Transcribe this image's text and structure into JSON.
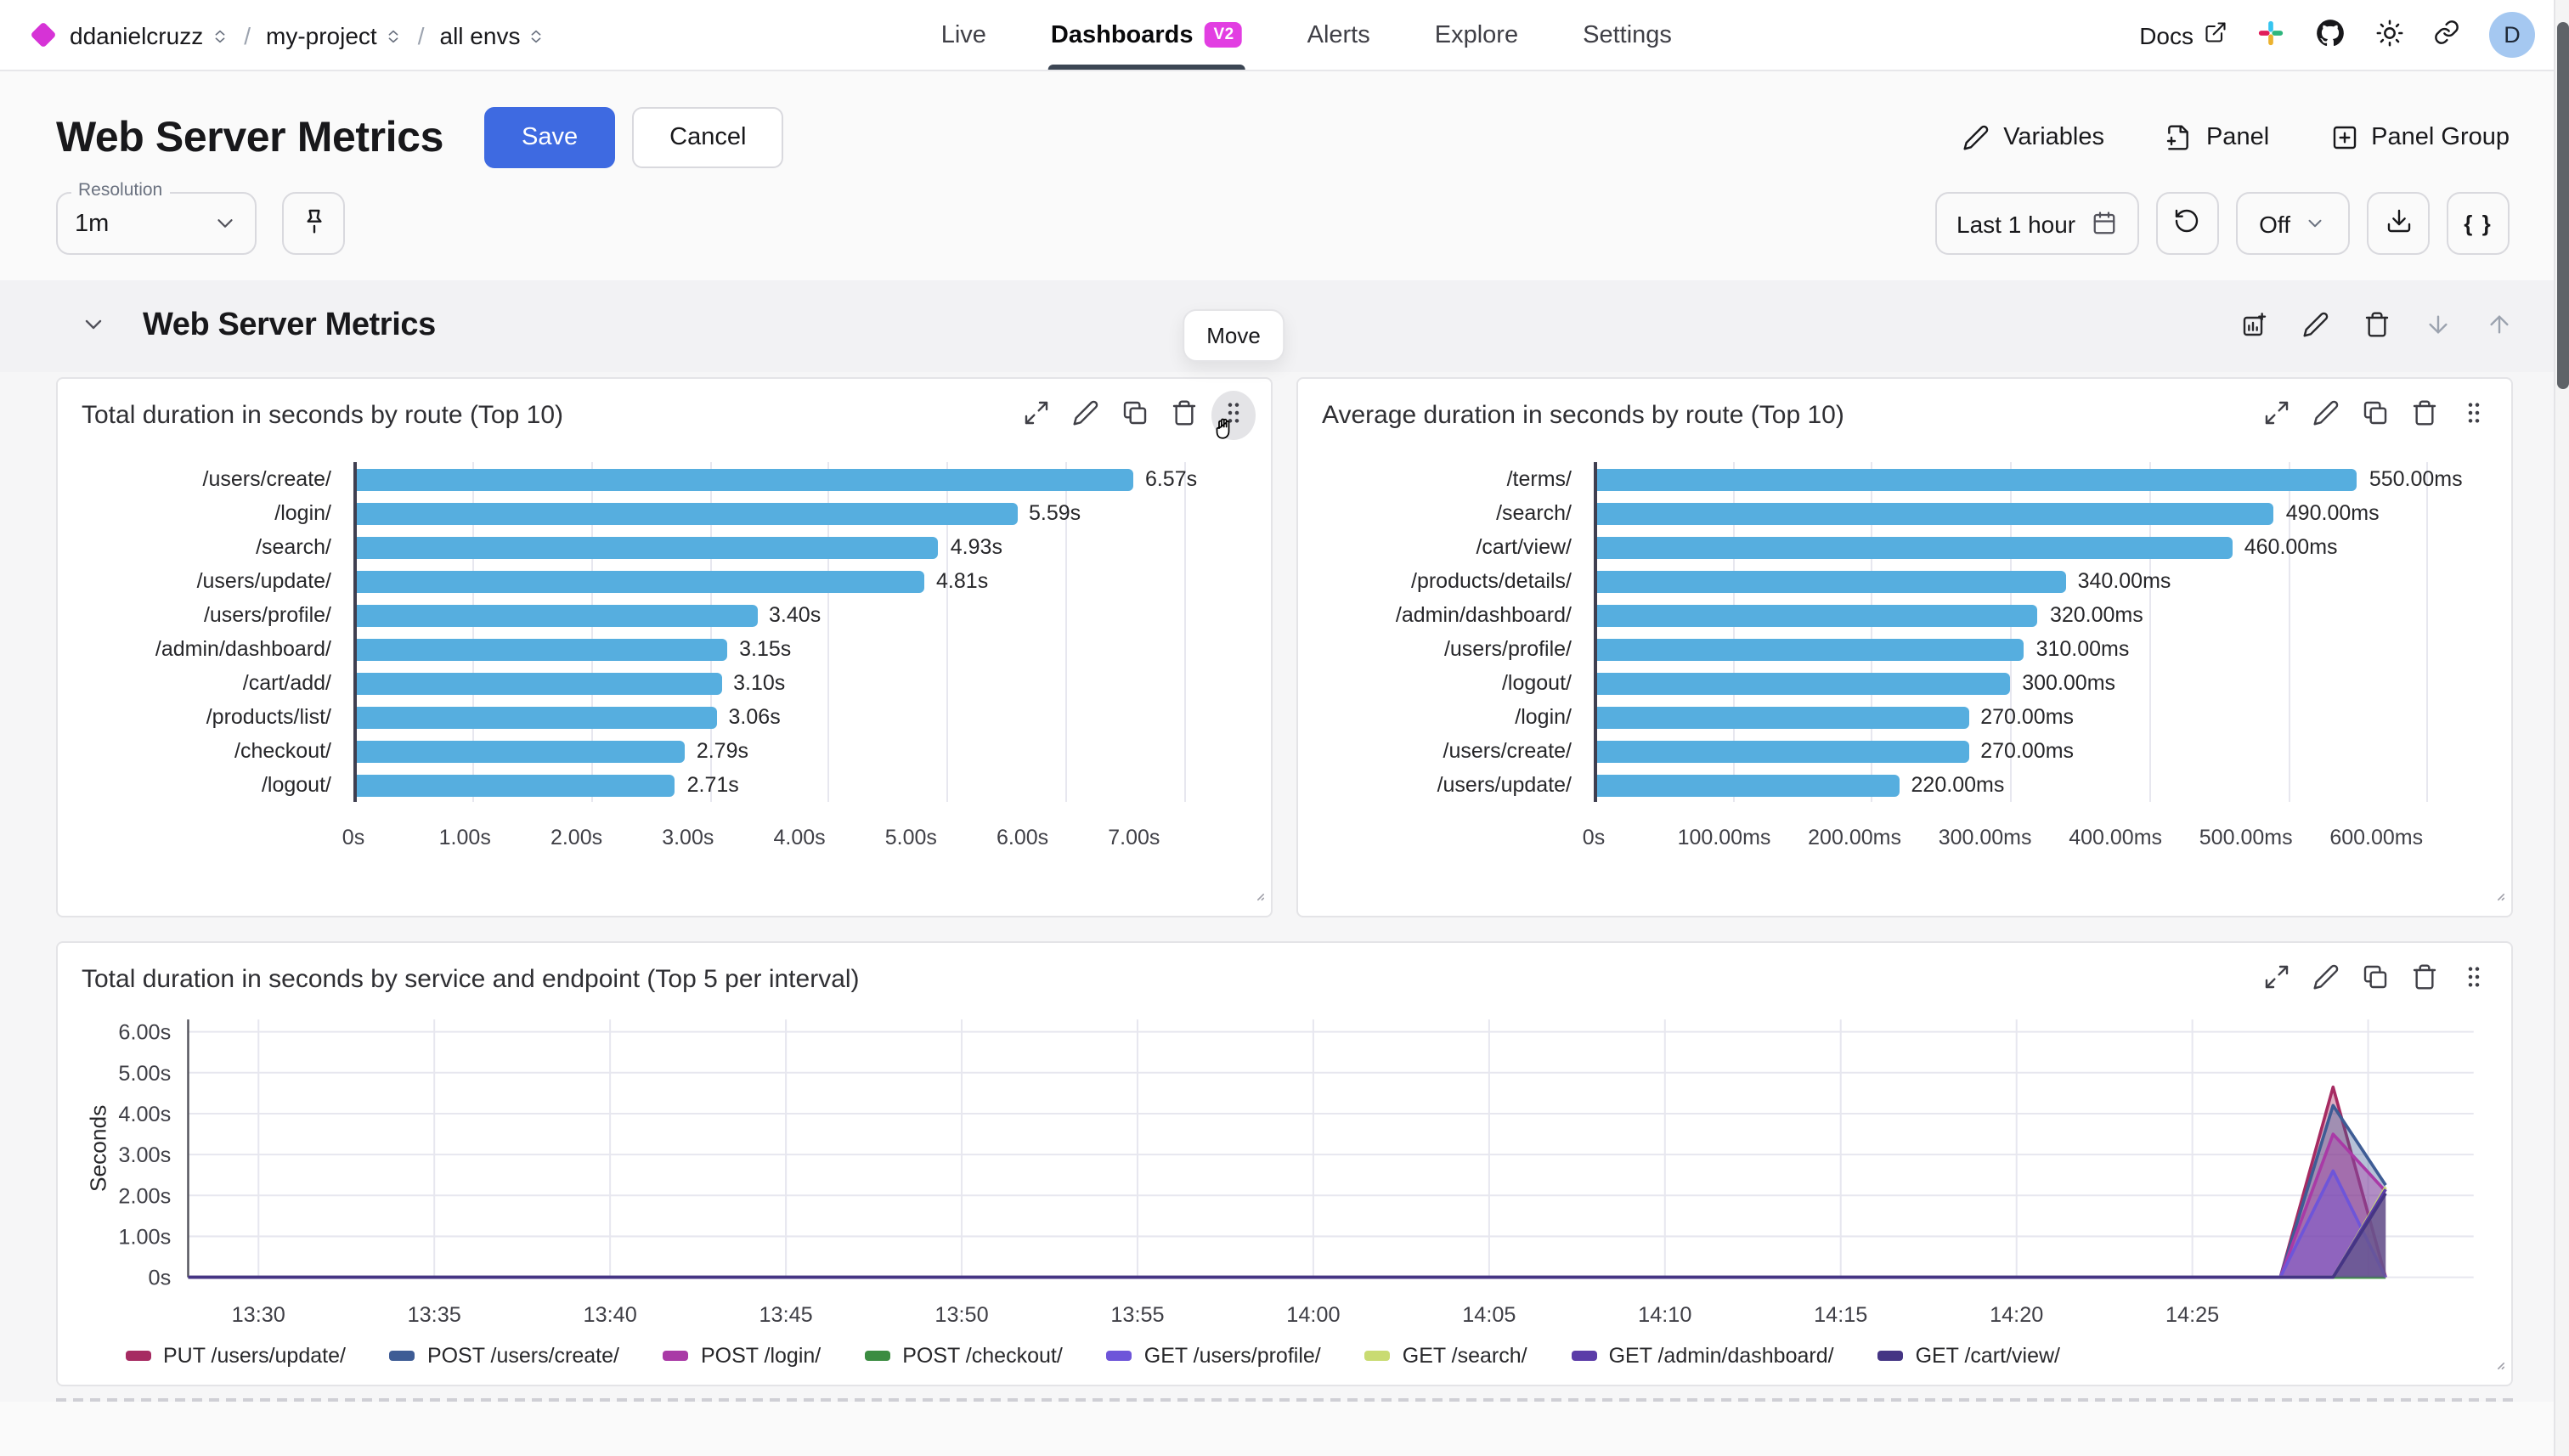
{
  "colors": {
    "brand_magenta": "#D633D6",
    "badge_magenta": "#E23EE2",
    "save_blue": "#3E6AE1",
    "bar_blue": "#56AEDF",
    "tab_underline": "#3C4654",
    "avatar_bg": "#A5C8F1"
  },
  "nav": {
    "breadcrumb": [
      {
        "label": "ddanielcruzz"
      },
      {
        "label": "my-project"
      },
      {
        "label": "all envs"
      }
    ],
    "tabs": [
      {
        "label": "Live",
        "active": false
      },
      {
        "label": "Dashboards",
        "active": true,
        "badge": "V2"
      },
      {
        "label": "Alerts",
        "active": false
      },
      {
        "label": "Explore",
        "active": false
      },
      {
        "label": "Settings",
        "active": false
      }
    ],
    "docs_label": "Docs",
    "right_icons": [
      "external-link-icon",
      "slack-icon",
      "github-icon",
      "sun-icon",
      "link-icon"
    ],
    "avatar_initial": "D"
  },
  "header": {
    "title": "Web Server Metrics",
    "save_label": "Save",
    "cancel_label": "Cancel",
    "actions": [
      {
        "label": "Variables",
        "icon": "pencil",
        "name": "variables-button"
      },
      {
        "label": "Panel",
        "icon": "file-plus",
        "name": "add-panel-button"
      },
      {
        "label": "Panel Group",
        "icon": "square-plus",
        "name": "add-panel-group-button"
      }
    ]
  },
  "toolbar": {
    "resolution_label": "Resolution",
    "resolution_value": "1m",
    "time_range_label": "Last 1 hour",
    "live_mode_label": "Off",
    "braces_label": "{ }"
  },
  "section": {
    "title": "Web Server Metrics",
    "move_tooltip": "Move",
    "icons": [
      {
        "icon": "add-panel",
        "name": "group-add-panel-button",
        "muted": false
      },
      {
        "icon": "pencil",
        "name": "group-edit-button",
        "muted": false
      },
      {
        "icon": "trash",
        "name": "group-delete-button",
        "muted": false
      },
      {
        "icon": "arrow-down",
        "name": "group-move-down-button",
        "muted": true
      },
      {
        "icon": "arrow-up",
        "name": "group-move-up-button",
        "muted": true
      }
    ]
  },
  "panel_action_icons": [
    "expand",
    "pencil",
    "copy",
    "trash",
    "drag"
  ],
  "chart_data": [
    {
      "type": "bar",
      "orientation": "horizontal",
      "title": "Total duration in seconds by route (Top 10)",
      "categories": [
        "/users/create/",
        "/login/",
        "/search/",
        "/users/update/",
        "/users/profile/",
        "/admin/dashboard/",
        "/cart/add/",
        "/products/list/",
        "/checkout/",
        "/logout/"
      ],
      "values": [
        6.57,
        5.59,
        4.93,
        4.81,
        3.4,
        3.15,
        3.1,
        3.06,
        2.79,
        2.71
      ],
      "value_labels": [
        "6.57s",
        "5.59s",
        "4.93s",
        "4.81s",
        "3.40s",
        "3.15s",
        "3.10s",
        "3.06s",
        "2.79s",
        "2.71s"
      ],
      "x_ticks": [
        {
          "value": 0,
          "label": "0s"
        },
        {
          "value": 1,
          "label": "1.00s"
        },
        {
          "value": 2,
          "label": "2.00s"
        },
        {
          "value": 3,
          "label": "3.00s"
        },
        {
          "value": 4,
          "label": "4.00s"
        },
        {
          "value": 5,
          "label": "5.00s"
        },
        {
          "value": 6,
          "label": "6.00s"
        },
        {
          "value": 7,
          "label": "7.00s"
        }
      ],
      "x_max": 7.1,
      "bar_color": "#56AEDF",
      "grid": true
    },
    {
      "type": "bar",
      "orientation": "horizontal",
      "title": "Average duration in seconds by route (Top 10)",
      "categories": [
        "/terms/",
        "/search/",
        "/cart/view/",
        "/products/details/",
        "/admin/dashboard/",
        "/users/profile/",
        "/logout/",
        "/login/",
        "/users/create/",
        "/users/update/"
      ],
      "values": [
        550,
        490,
        460,
        340,
        320,
        310,
        300,
        270,
        270,
        220
      ],
      "value_labels": [
        "550.00ms",
        "490.00ms",
        "460.00ms",
        "340.00ms",
        "320.00ms",
        "310.00ms",
        "300.00ms",
        "270.00ms",
        "270.00ms",
        "220.00ms"
      ],
      "x_ticks": [
        {
          "value": 0,
          "label": "0s"
        },
        {
          "value": 100,
          "label": "100.00ms"
        },
        {
          "value": 200,
          "label": "200.00ms"
        },
        {
          "value": 300,
          "label": "300.00ms"
        },
        {
          "value": 400,
          "label": "400.00ms"
        },
        {
          "value": 500,
          "label": "500.00ms"
        },
        {
          "value": 600,
          "label": "600.00ms"
        }
      ],
      "x_max": 607,
      "bar_color": "#56AEDF",
      "grid": true
    },
    {
      "type": "area",
      "title": "Total duration in seconds by service and endpoint (Top 5 per interval)",
      "ylabel": "Seconds",
      "y_ticks": [
        {
          "value": 0,
          "label": "0s"
        },
        {
          "value": 1,
          "label": "1.00s"
        },
        {
          "value": 2,
          "label": "2.00s"
        },
        {
          "value": 3,
          "label": "3.00s"
        },
        {
          "value": 4,
          "label": "4.00s"
        },
        {
          "value": 5,
          "label": "5.00s"
        },
        {
          "value": 6,
          "label": "6.00s"
        }
      ],
      "y_max": 6.3,
      "x_domain_minutes": [
        0,
        65
      ],
      "x_ticks": [
        {
          "minute": 2,
          "label": "13:30"
        },
        {
          "minute": 7,
          "label": "13:35"
        },
        {
          "minute": 12,
          "label": "13:40"
        },
        {
          "minute": 17,
          "label": "13:45"
        },
        {
          "minute": 22,
          "label": "13:50"
        },
        {
          "minute": 27,
          "label": "13:55"
        },
        {
          "minute": 32,
          "label": "14:00"
        },
        {
          "minute": 37,
          "label": "14:05"
        },
        {
          "minute": 42,
          "label": "14:10"
        },
        {
          "minute": 47,
          "label": "14:15"
        },
        {
          "minute": 52,
          "label": "14:20"
        },
        {
          "minute": 57,
          "label": "14:25"
        }
      ],
      "extra_gridline_minutes": [
        62
      ],
      "grid": true,
      "legend_position": "bottom",
      "series": [
        {
          "name": "PUT /users/update/",
          "color": "#A62B62",
          "points": [
            [
              0,
              0
            ],
            [
              59.5,
              0
            ],
            [
              61,
              4.65
            ],
            [
              62.5,
              0
            ]
          ]
        },
        {
          "name": "POST /users/create/",
          "color": "#3E5C95",
          "points": [
            [
              0,
              0
            ],
            [
              59.5,
              0
            ],
            [
              61,
              4.2
            ],
            [
              62.5,
              2.25
            ]
          ]
        },
        {
          "name": "POST /login/",
          "color": "#A93AA6",
          "points": [
            [
              0,
              0
            ],
            [
              59.5,
              0
            ],
            [
              61,
              3.5
            ],
            [
              62.5,
              2.1
            ]
          ]
        },
        {
          "name": "POST /checkout/",
          "color": "#3B8C41",
          "points": [
            [
              0,
              0
            ],
            [
              62.5,
              0
            ]
          ]
        },
        {
          "name": "GET /users/profile/",
          "color": "#6E55D9",
          "points": [
            [
              0,
              0
            ],
            [
              59.5,
              0
            ],
            [
              61,
              2.6
            ],
            [
              62.5,
              0
            ]
          ]
        },
        {
          "name": "GET /search/",
          "color": "#C9DB72",
          "points": [
            [
              0,
              0
            ],
            [
              61,
              0
            ],
            [
              62.5,
              2.2
            ]
          ]
        },
        {
          "name": "GET /admin/dashboard/",
          "color": "#5B3CA8",
          "points": [
            [
              0,
              0
            ],
            [
              61,
              0
            ],
            [
              62.5,
              2.15
            ]
          ]
        },
        {
          "name": "GET /cart/view/",
          "color": "#453584",
          "points": [
            [
              0,
              0
            ],
            [
              61,
              0
            ],
            [
              62.5,
              2.05
            ]
          ]
        }
      ]
    }
  ]
}
